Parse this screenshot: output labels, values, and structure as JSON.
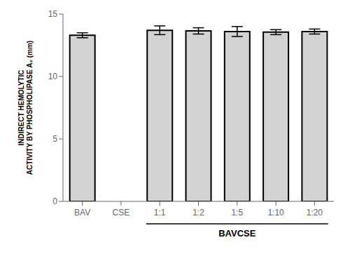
{
  "chart_data": {
    "type": "bar",
    "categories": [
      "BAV",
      "CSE",
      "1:1",
      "1:2",
      "1:5",
      "1:10",
      "1:20"
    ],
    "values": [
      13.3,
      0,
      13.7,
      13.65,
      13.6,
      13.55,
      13.6
    ],
    "errors": [
      0.2,
      0,
      0.35,
      0.25,
      0.4,
      0.2,
      0.2
    ],
    "color": "#d3d3d3",
    "ylabel": "INDIRECT HEMOLYTIC\nACTIVITY BY PHOSPHOLIPASE A₂ (mm)",
    "ylim": [
      0,
      15
    ],
    "yticks": [
      0,
      5,
      10,
      15
    ],
    "grid": false,
    "annotations": [
      {
        "text": "BAVCSE",
        "from": "1:1",
        "to": "1:20"
      }
    ]
  }
}
